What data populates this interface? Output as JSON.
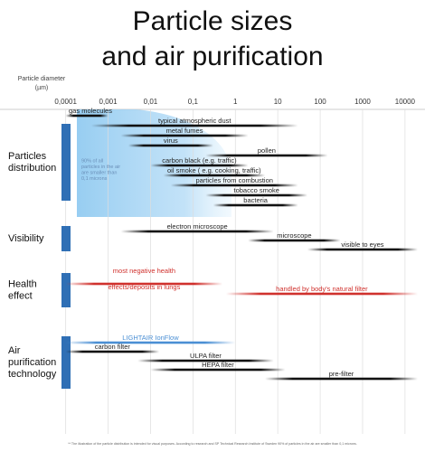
{
  "chart_data": {
    "type": "range",
    "title": [
      "Particle sizes",
      "and air purification"
    ],
    "x_label": [
      "Particle diameter",
      "(µm)"
    ],
    "log_x": true,
    "xlim": [
      4e-05,
      20000
    ],
    "xticks": [
      {
        "value": 0.0001,
        "label": "0,0001"
      },
      {
        "value": 0.001,
        "label": "0,001"
      },
      {
        "value": 0.01,
        "label": "0,01"
      },
      {
        "value": 0.1,
        "label": "0,1"
      },
      1,
      10,
      100,
      1000,
      10000
    ],
    "grid": true,
    "annotation": [
      "90% of all",
      "particles in the air",
      "are smaller than",
      "0,1 microns"
    ],
    "footnote": "** The illustration of the particle distribution is intended for visual purposes. According to research and SP Technical Research Institute of Sweden 90% of particles in the air are smaller than 0,1 microns.",
    "section_color": "#2f6fb5",
    "groups": [
      {
        "name": [
          "Particles",
          "distribution"
        ],
        "items": [
          {
            "label": [
              "gas molecules"
            ],
            "start": 0.0001,
            "end": 0.001,
            "color": "#111111"
          },
          {
            "label": [
              "typical atmospheric dust"
            ],
            "start": 0.0004,
            "end": 30,
            "color": "#111111"
          },
          {
            "label": [
              "metal fumes"
            ],
            "start": 0.002,
            "end": 2,
            "color": "#111111"
          },
          {
            "label": [
              "virus"
            ],
            "start": 0.003,
            "end": 0.3,
            "color": "#111111"
          },
          {
            "label": [
              "pollen"
            ],
            "start": 0.2,
            "end": 150,
            "color": "#111111"
          },
          {
            "label": [
              "carbon black (e.g. traffic)"
            ],
            "start": 0.01,
            "end": 2,
            "color": "#111111"
          },
          {
            "label": [
              "oil smoke ( e.g. cooking, traffic)"
            ],
            "start": 0.02,
            "end": 5,
            "color": "#111111"
          },
          {
            "label": [
              "particles from combustion"
            ],
            "start": 0.03,
            "end": 30,
            "color": "#111111"
          },
          {
            "label": [
              "tobacco smoke"
            ],
            "start": 0.2,
            "end": 50,
            "color": "#111111"
          },
          {
            "label": [
              "bacteria"
            ],
            "start": 0.3,
            "end": 30,
            "color": "#111111"
          }
        ]
      },
      {
        "name": [
          "Visibility"
        ],
        "items": [
          {
            "label": [
              "electron microscope"
            ],
            "start": 0.002,
            "end": 8,
            "color": "#111111"
          },
          {
            "label": [
              "microscope"
            ],
            "start": 2,
            "end": 300,
            "color": "#111111"
          },
          {
            "label": [
              "visible to eyes"
            ],
            "start": 50,
            "end": 20000,
            "color": "#111111"
          }
        ]
      },
      {
        "name": [
          "Health",
          "effect"
        ],
        "items": [
          {
            "label": [
              "most negative health",
              "effects/deposits in lungs"
            ],
            "start": 0.0001,
            "end": 0.5,
            "color": "#d0312d"
          },
          {
            "label": [
              "handled by body's natural filter"
            ],
            "start": 0.6,
            "end": 20000,
            "color": "#d0312d"
          }
        ]
      },
      {
        "name": [
          "Air",
          "purification",
          "technology"
        ],
        "items": [
          {
            "label": [
              "LIGHTAIR IonFlow"
            ],
            "start": 0.0001,
            "end": 1,
            "color": "#4a8fd4"
          },
          {
            "label": [
              "carbon filter"
            ],
            "start": 0.0001,
            "end": 0.016,
            "color": "#111111"
          },
          {
            "label": [
              "ULPA filter"
            ],
            "start": 0.005,
            "end": 8,
            "color": "#111111"
          },
          {
            "label": [
              "HEPA filter"
            ],
            "start": 0.01,
            "end": 15,
            "color": "#111111"
          },
          {
            "label": [
              "pre-filter"
            ],
            "start": 5,
            "end": 20000,
            "color": "#111111"
          }
        ]
      }
    ]
  }
}
